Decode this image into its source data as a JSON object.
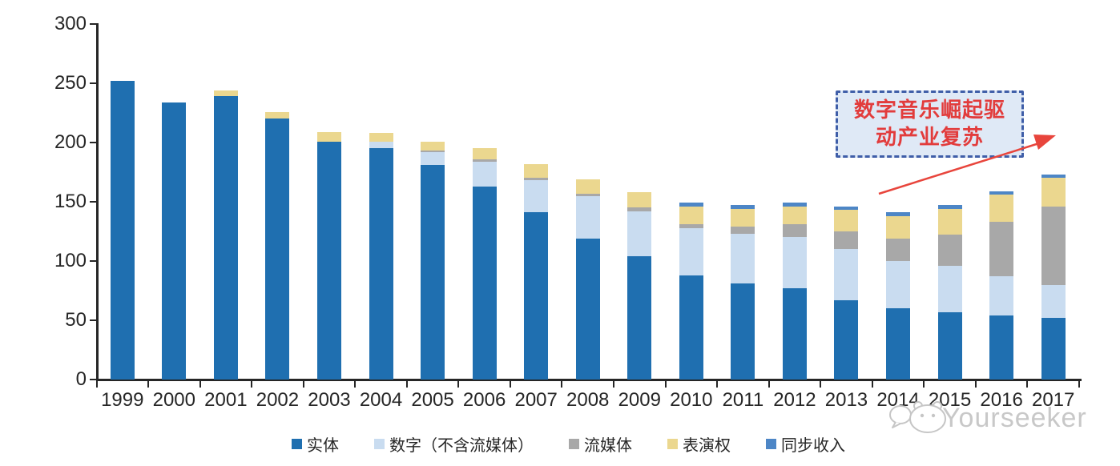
{
  "chart_data": {
    "type": "bar",
    "stacked": true,
    "title": "",
    "categories": [
      "1999",
      "2000",
      "2001",
      "2002",
      "2003",
      "2004",
      "2005",
      "2006",
      "2007",
      "2008",
      "2009",
      "2010",
      "2011",
      "2012",
      "2013",
      "2014",
      "2015",
      "2016",
      "2017"
    ],
    "series": [
      {
        "key": "physical",
        "name": "实体",
        "color": "#1f6fb0",
        "values": [
          252,
          234,
          239,
          220,
          201,
          195,
          181,
          163,
          141,
          119,
          104,
          88,
          81,
          77,
          67,
          60,
          57,
          54,
          52
        ]
      },
      {
        "key": "digital-excl-streaming",
        "name": "数字（不含流媒体）",
        "color": "#c9dcf0",
        "values": [
          0,
          0,
          0,
          0,
          0,
          6,
          11,
          21,
          27,
          36,
          38,
          40,
          42,
          43,
          43,
          40,
          39,
          33,
          28
        ]
      },
      {
        "key": "streaming",
        "name": "流媒体",
        "color": "#a8a8a8",
        "values": [
          0,
          0,
          0,
          0,
          0,
          0,
          1,
          2,
          2,
          2,
          3,
          3,
          6,
          11,
          15,
          19,
          26,
          46,
          66
        ]
      },
      {
        "key": "performance-rights",
        "name": "表演权",
        "color": "#ebd78f",
        "values": [
          0,
          0,
          5,
          6,
          8,
          7,
          8,
          9,
          12,
          12,
          13,
          15,
          15,
          15,
          18,
          19,
          22,
          23,
          24
        ]
      },
      {
        "key": "sync-revenue",
        "name": "同步收入",
        "color": "#4d86c6",
        "values": [
          0,
          0,
          0,
          0,
          0,
          0,
          0,
          0,
          0,
          0,
          0,
          3,
          3,
          3,
          3,
          3,
          3,
          3,
          3
        ]
      }
    ],
    "y_ticks": [
      0,
      50,
      100,
      150,
      200,
      250,
      300
    ],
    "ylim": [
      0,
      300
    ],
    "grid": false,
    "legend_position": "bottom"
  },
  "annotation": {
    "line1": "数字音乐崛起驱",
    "line2": "动产业复苏",
    "full_text": "数字音乐崛起驱动产业复苏",
    "box_fill": "#dfe9f6",
    "border_color": "#3f5ea8",
    "text_color": "#e23c3c",
    "arrow_color": "#e8453c"
  },
  "watermark": {
    "text": "Yourseeker",
    "color": "#c8c8c8",
    "icon": "yourseeker-mascot-icon"
  }
}
